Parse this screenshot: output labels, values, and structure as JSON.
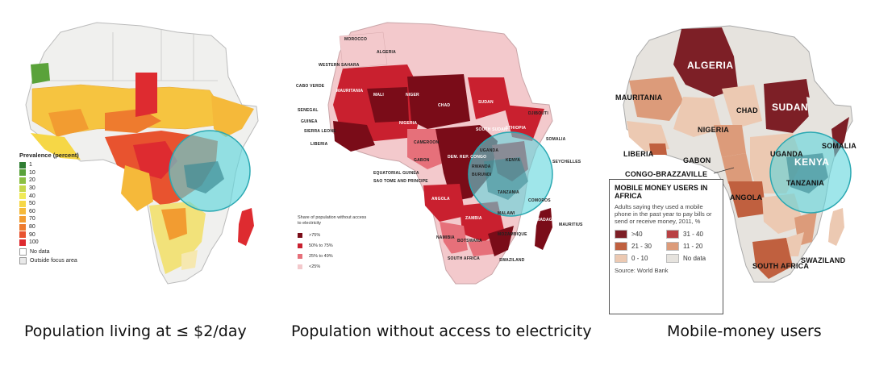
{
  "colors": {
    "highlight_circle": "#5fd6dc",
    "highlight_stroke": "#2aa8b2",
    "p1_green": "#4e9a3a",
    "p1_yellow": "#f4d642",
    "p1_orange": "#f39a2c",
    "p1_red": "#e03838",
    "p2_darkest": "#7a0c18",
    "p2_dark": "#c9202f",
    "p2_mid": "#e6707a",
    "p2_light": "#f3c9cc",
    "p3_darkest": "#7d1f26",
    "p3_dark": "#c0603f",
    "p3_mid": "#dc9b7a",
    "p3_light": "#ecc9b2",
    "p3_nodata": "#e6e3de"
  },
  "maps": [
    {
      "caption": "Population living at ≤ $2/day",
      "legend": {
        "title": "Prevalence (percent)",
        "levels": [
          {
            "label": "1",
            "color": "#2f7d32"
          },
          {
            "label": "10",
            "color": "#5aa23a"
          },
          {
            "label": "20",
            "color": "#8cc043"
          },
          {
            "label": "30",
            "color": "#c6d84b"
          },
          {
            "label": "40",
            "color": "#f0ea58"
          },
          {
            "label": "50",
            "color": "#f6d746"
          },
          {
            "label": "60",
            "color": "#f5b93a"
          },
          {
            "label": "70",
            "color": "#f29c31"
          },
          {
            "label": "80",
            "color": "#ee7b2e"
          },
          {
            "label": "90",
            "color": "#e8532f"
          },
          {
            "label": "100",
            "color": "#de2b30"
          }
        ],
        "no_data": "No data",
        "outside": "Outside focus area"
      }
    },
    {
      "caption": "Population without access to electricity",
      "legend": {
        "title": "Share of population without access to electricity",
        "levels": [
          {
            "label": ">75%",
            "color": "#7a0c18"
          },
          {
            "label": "50% to 75%",
            "color": "#c9202f"
          },
          {
            "label": "25% to 49%",
            "color": "#e6707a"
          },
          {
            "label": "<25%",
            "color": "#f3c9cc"
          }
        ]
      },
      "labels": {
        "morocco": "MOROCCO",
        "algeria": "ALGERIA",
        "mauritania": "MAURITANIA",
        "mali": "MALI",
        "niger": "NIGER",
        "chad": "CHAD",
        "sudan": "SUDAN",
        "nigeria": "NIGERIA",
        "ethiopia": "ETHIOPIA",
        "kenya": "KENYA",
        "tanzania": "TANZANIA",
        "congo": "DEM. REP. CONGO",
        "angola": "ANGOLA",
        "zambia": "ZAMBIA",
        "namibia": "NAMIBIA",
        "botswana": "BOTSWANA",
        "south_africa": "SOUTH AFRICA",
        "madagascar": "MADAGASCAR",
        "swaziland": "SWAZILAND",
        "senegal": "SENEGAL",
        "guinea": "GUINEA",
        "cabo_verde": "CABO VERDE",
        "sierra_leone": "SIERRA LEONE",
        "liberia": "LIBERIA",
        "gabon": "GABON",
        "somalia": "SOMALIA",
        "south_sudan": "SOUTH SUDAN",
        "djibouti": "DJIBOUTI",
        "seychelles": "SEYCHELLES",
        "mauritius": "MAURITIUS",
        "mozambique": "MOZAMBIQUE",
        "malawi": "MALAWI",
        "uganda": "UGANDA",
        "rwanda": "RWANDA",
        "burundi": "BURUNDI",
        "comoros": "COMOROS",
        "cameroon": "CAMEROON",
        "eq_guinea": "EQUATORIAL GUINEA",
        "sao_tome": "SAO TOME AND PRINCIPE",
        "western_sahara": "WESTERN SAHARA"
      }
    },
    {
      "caption": "Mobile-money users",
      "legend": {
        "title": "MOBILE MONEY USERS IN AFRICA",
        "subtitle": "Adults saying they used a mobile phone in the past year to pay bills or send or receive money, 2011, %",
        "levels": [
          {
            "label": ">40",
            "color": "#7d1f26"
          },
          {
            "label": "31 - 40",
            "color": "#b84144"
          },
          {
            "label": "21 - 30",
            "color": "#c0603f"
          },
          {
            "label": "11 - 20",
            "color": "#dc9b7a"
          },
          {
            "label": "0 - 10",
            "color": "#ecc9b2"
          },
          {
            "label": "No data",
            "color": "#e6e3de"
          }
        ],
        "source": "Source: World Bank"
      },
      "labels": {
        "algeria": "ALGERIA",
        "sudan": "SUDAN",
        "mauritania": "MAURITANIA",
        "chad": "CHAD",
        "nigeria": "NIGERIA",
        "liberia": "LIBERIA",
        "gabon": "GABON",
        "congo_brazzaville": "CONGO-BRAZZAVILLE",
        "uganda": "UGANDA",
        "kenya": "KENYA",
        "somalia": "SOMALIA",
        "tanzania": "TANZANIA",
        "angola": "ANGOLA",
        "south_africa": "SOUTH AFRICA",
        "swaziland": "SWAZILAND"
      }
    }
  ]
}
